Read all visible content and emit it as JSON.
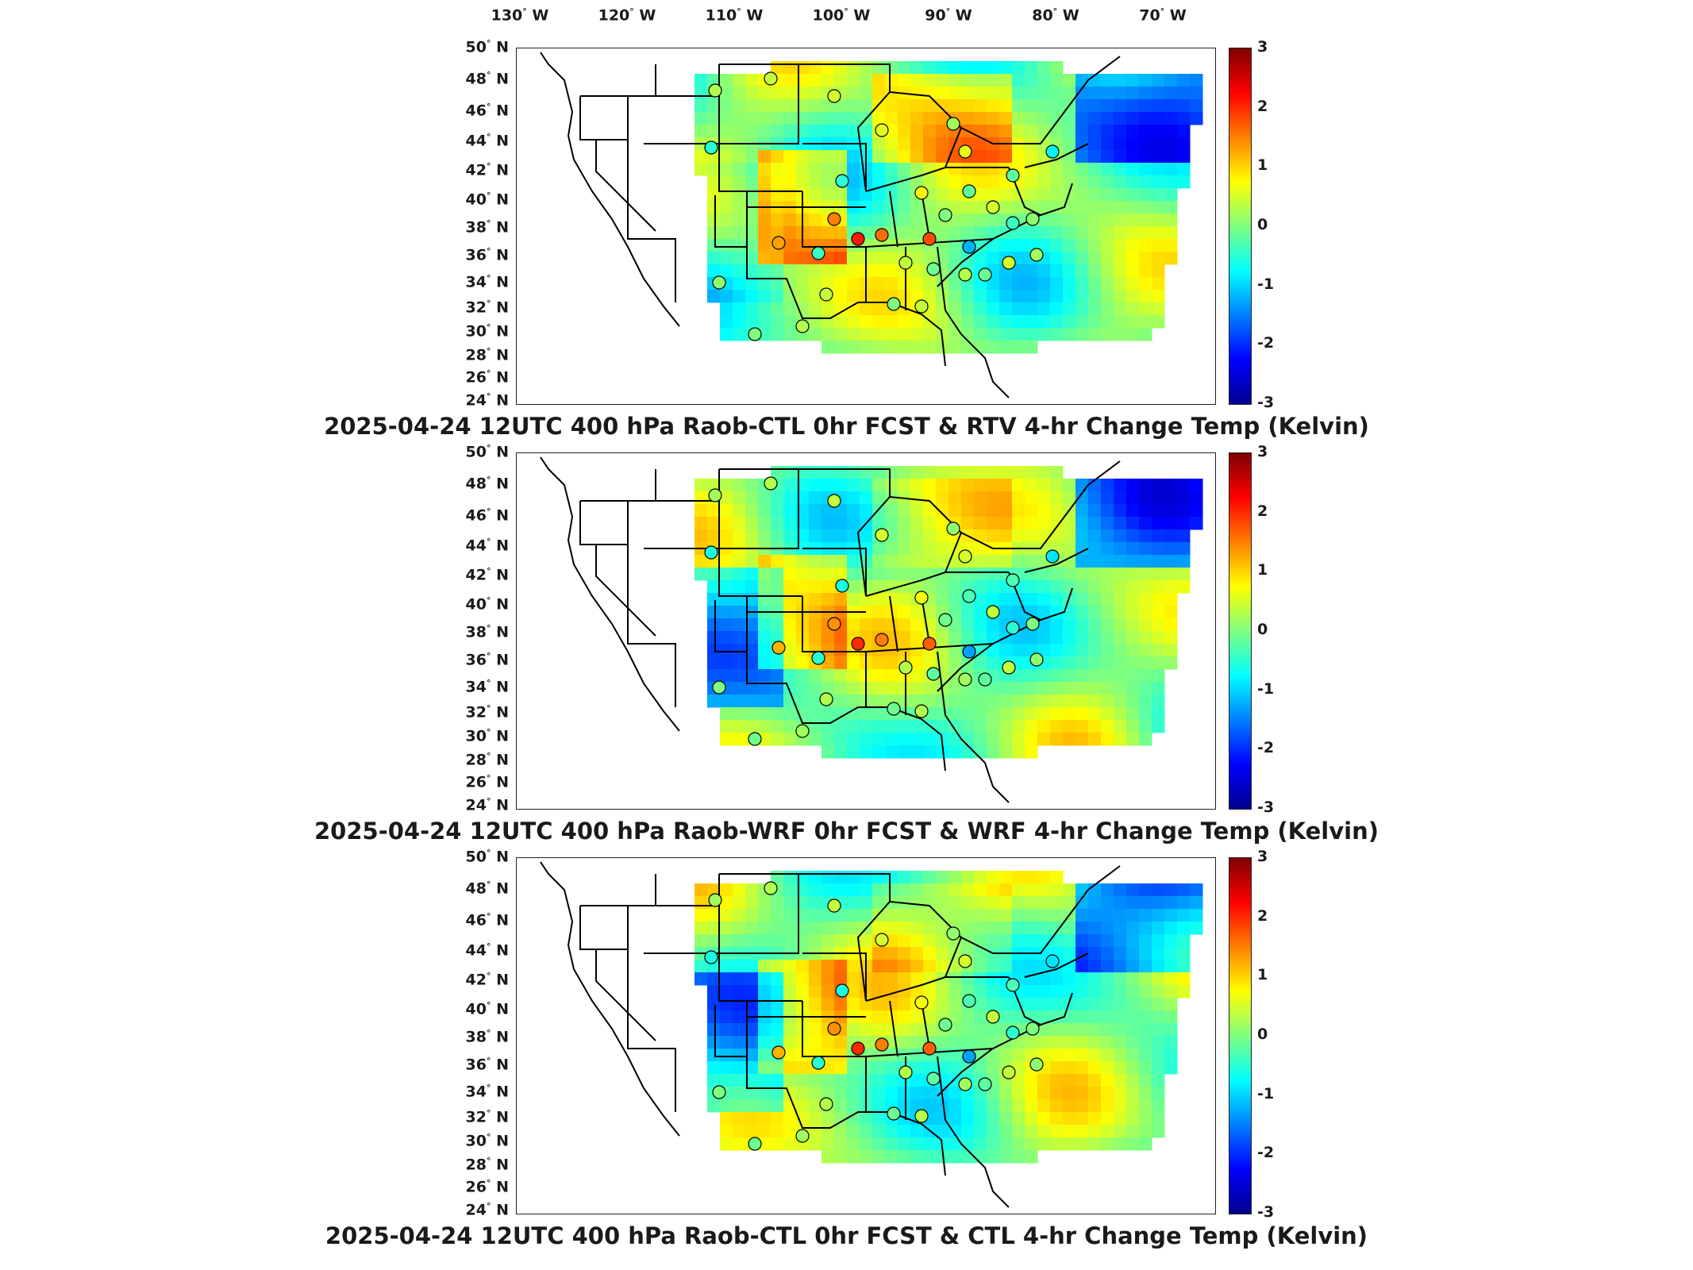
{
  "top_longitude_labels": [
    "130",
    "120",
    "110",
    "100",
    "90",
    "80",
    "70"
  ],
  "longitude_suffix": "W",
  "latitude_labels": [
    "50",
    "48",
    "46",
    "44",
    "42",
    "40",
    "38",
    "36",
    "34",
    "32",
    "30",
    "28",
    "26",
    "24"
  ],
  "latitude_suffix": "N",
  "colorbar_ticks": [
    "3",
    "2",
    "1",
    "0",
    "-1",
    "-2",
    "-3"
  ],
  "colors": {
    "scale": [
      "#00008f",
      "#0000ff",
      "#007fff",
      "#00ffff",
      "#7fff7f",
      "#ffff00",
      "#ff7f00",
      "#ff0000",
      "#7f0000"
    ],
    "background": "#ffffff",
    "lines": "#000000"
  },
  "panels": [
    {
      "title": "2025-04-24 12UTC 400 hPa Raob-CTL 0hr FCST & RTV 4-hr Change Temp (Kelvin)"
    },
    {
      "title": "2025-04-24 12UTC 400 hPa Raob-WRF 0hr FCST & WRF 4-hr Change Temp (Kelvin)"
    },
    {
      "title": "2025-04-24 12UTC 400 hPa Raob-CTL 0hr FCST & CTL 4-hr Change Temp (Kelvin)"
    }
  ]
}
